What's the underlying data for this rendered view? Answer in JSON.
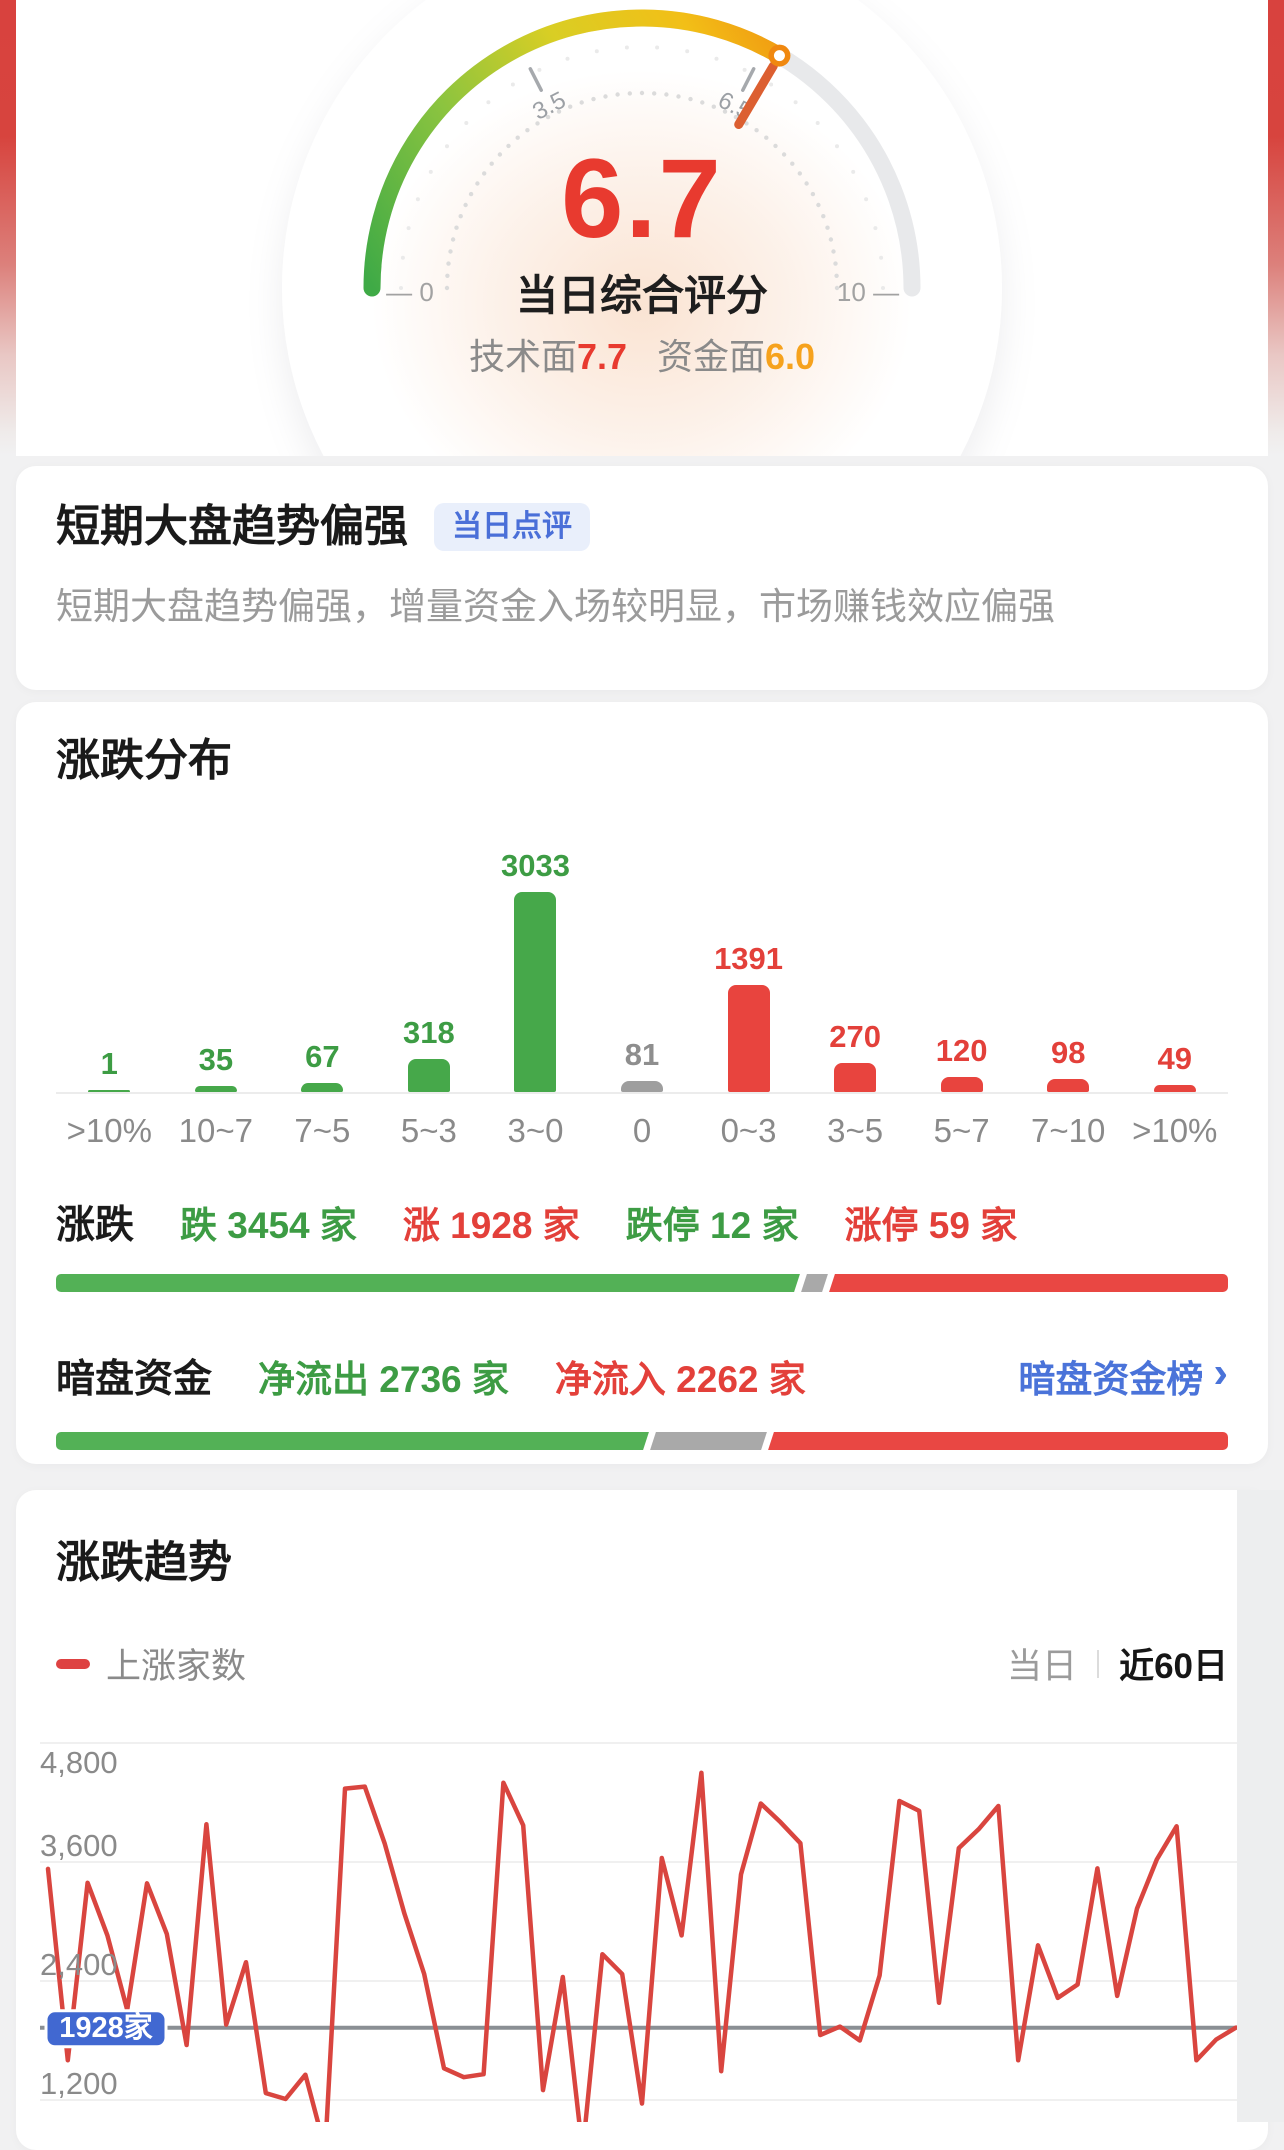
{
  "gauge": {
    "score": "6.7",
    "value": 6.7,
    "min": 0,
    "max": 10,
    "title": "当日综合评分",
    "sub": [
      {
        "label": "技术面",
        "value": "7.7",
        "color": "#E83A2F"
      },
      {
        "label": "资金面",
        "value": "6.0",
        "color": "#F6A21D"
      }
    ],
    "axis": {
      "left": "— 0",
      "right": "10 —",
      "ticks": [
        {
          "value": 3.5,
          "label": "3.5"
        },
        {
          "value": 6.5,
          "label": "6.5"
        }
      ]
    },
    "colors": {
      "start": "#3FAA46",
      "mid": "#D9CE24",
      "end": "#F0880F",
      "track": "#E8E9EB",
      "needle": "#DC5F31"
    }
  },
  "comment": {
    "title": "短期大盘趋势偏强",
    "badge": "当日点评",
    "body": "短期大盘趋势偏强，增量资金入场较明显，市场赚钱效应偏强"
  },
  "distribution": {
    "title": "涨跌分布",
    "updown": {
      "label": "涨跌",
      "items": [
        {
          "text": "跌 3454 家",
          "color": "#3D9C44"
        },
        {
          "text": "涨 1928 家",
          "color": "#E3403A"
        },
        {
          "text": "跌停 12 家",
          "color": "#3D9C44"
        },
        {
          "text": "涨停 59 家",
          "color": "#E3403A"
        }
      ],
      "bar_segments": [
        63.2,
        1.8,
        35.0
      ]
    },
    "dark_pool": {
      "label": "暗盘资金",
      "items": [
        {
          "text": "净流出 2736 家",
          "color": "#3D9C44"
        },
        {
          "text": "净流入 2262 家",
          "color": "#E3403A"
        }
      ],
      "link": "暗盘资金榜",
      "chevron": "›",
      "bar_segments": [
        50.3,
        9.5,
        40.2
      ]
    }
  },
  "trend": {
    "title": "涨跌趋势",
    "legend": "上涨家数",
    "tabs": [
      {
        "label": "当日",
        "active": false
      },
      {
        "label": "近60日",
        "active": true
      }
    ],
    "current_badge": "1928家"
  },
  "chart_data": [
    {
      "type": "bar",
      "title": "涨跌分布",
      "categories": [
        ">10%",
        "10~7",
        "7~5",
        "5~3",
        "3~0",
        "0",
        "0~3",
        "3~5",
        "5~7",
        "7~10",
        ">10%"
      ],
      "values": [
        1,
        35,
        67,
        318,
        3033,
        81,
        1391,
        270,
        120,
        98,
        49
      ],
      "colors": [
        "green",
        "green",
        "green",
        "green",
        "green",
        "gray",
        "red",
        "red",
        "red",
        "red",
        "red"
      ],
      "bar_color_map": {
        "green": "#46A84A",
        "gray": "#9E9E9E",
        "red": "#E8443E"
      },
      "label_color_map": {
        "green": "#3D9C44",
        "gray": "#8E8E8E",
        "red": "#E3403A"
      },
      "ylim": [
        0,
        3033
      ],
      "xlabel": "",
      "ylabel": ""
    },
    {
      "type": "line",
      "title": "涨跌趋势",
      "series": [
        {
          "name": "上涨家数",
          "color": "#D9453F",
          "values": [
            3530,
            1600,
            3390,
            2860,
            2110,
            3385,
            2875,
            1755,
            3980,
            1960,
            2590,
            1270,
            1210,
            1455,
            700,
            4340,
            4360,
            3790,
            3080,
            2470,
            1520,
            1430,
            1460,
            4400,
            3970,
            1300,
            2440,
            680,
            2670,
            2470,
            1165,
            3640,
            2860,
            4500,
            1490,
            3475,
            4190,
            4000,
            3790,
            1855,
            1940,
            1800,
            2455,
            4215,
            4115,
            2180,
            3740,
            3930,
            4165,
            1600,
            2760,
            2230,
            2365,
            3535,
            2250,
            3130,
            3625,
            3960,
            1600,
            1810,
            1930
          ]
        }
      ],
      "yticks": [
        4800,
        3600,
        2400,
        1200
      ],
      "ytick_labels": [
        "4,800",
        "3,600",
        "2,400",
        "1,200"
      ],
      "current_value": 1928,
      "current_label": "1928家",
      "current_line_color": "#8A8F94",
      "badge_color": "#4168D1",
      "grid": true,
      "legend_position": "top-left",
      "x_range_label": "近60日"
    }
  ]
}
